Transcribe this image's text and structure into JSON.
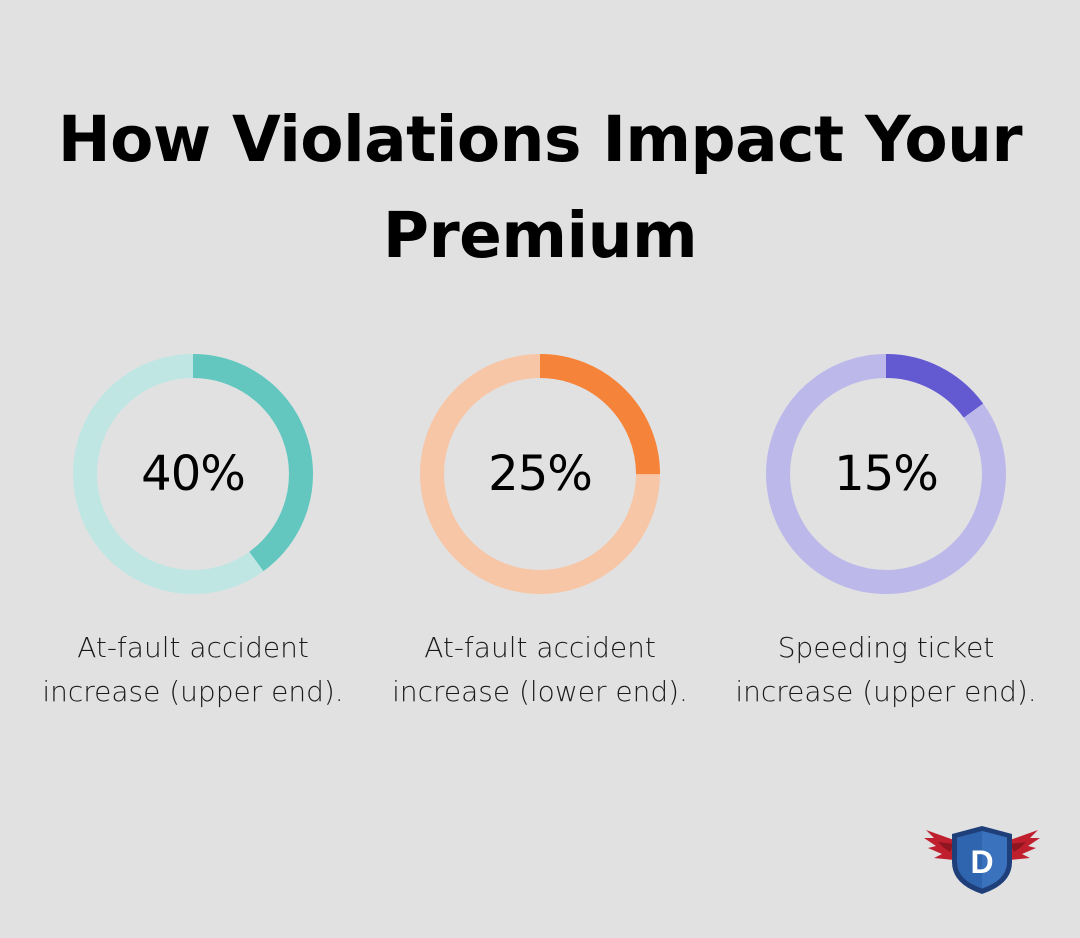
{
  "title_line1": "How Violations Impact Your",
  "title_line2": "Premium",
  "chart_data": {
    "type": "pie",
    "subtype": "donut",
    "items": [
      {
        "value": 40,
        "label": "40%",
        "caption_line1": "At-fault accident",
        "caption_line2": "increase (upper end).",
        "color": "#63c7bf",
        "track_color": "#bfe6e3"
      },
      {
        "value": 25,
        "label": "25%",
        "caption_line1": "At-fault accident",
        "caption_line2": "increase (lower end).",
        "color": "#f5843a",
        "track_color": "#f7c6a6"
      },
      {
        "value": 15,
        "label": "15%",
        "caption_line1": "Speeding ticket",
        "caption_line2": "increase (upper end).",
        "color": "#635ad2",
        "track_color": "#bcb8ea"
      }
    ]
  },
  "logo": {
    "letter": "D",
    "icon": "shield-wings-logo"
  }
}
